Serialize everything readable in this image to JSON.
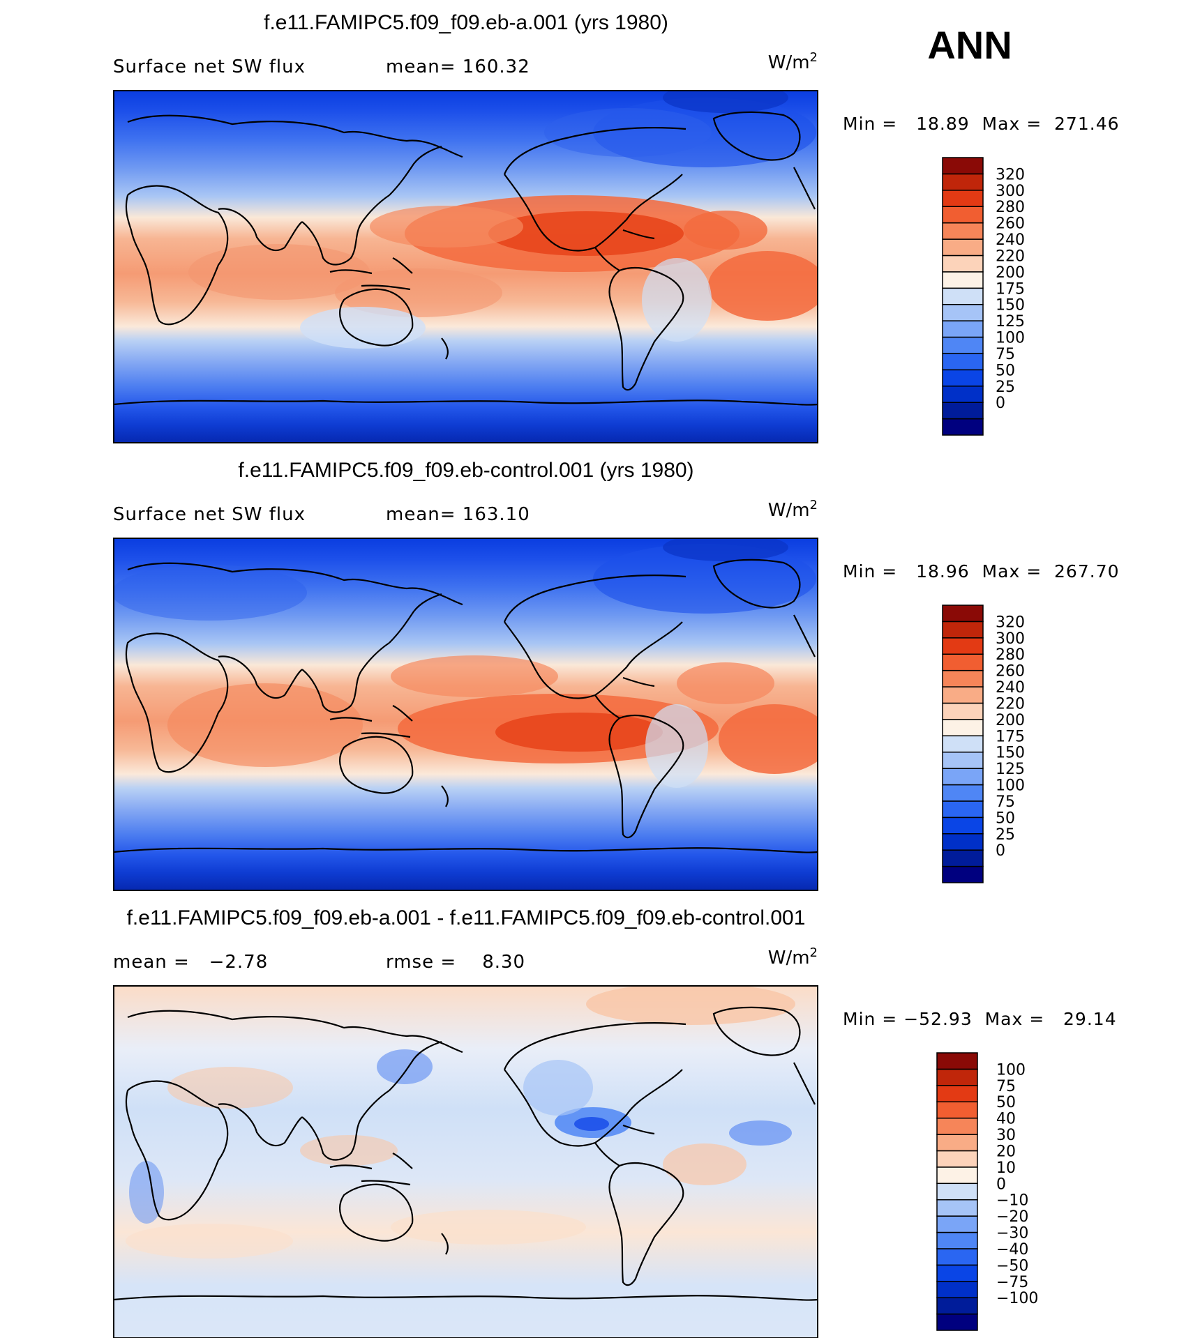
{
  "season_label": "ANN",
  "colorbar_palettes": {
    "field": [
      "#00007f",
      "#001c9a",
      "#0030c8",
      "#0a45e6",
      "#2a66f2",
      "#4f86f5",
      "#7aa5f7",
      "#a6c4f7",
      "#cfe0f7",
      "#fdf2e6",
      "#fcd3ba",
      "#f9ac86",
      "#f68559",
      "#f15e31",
      "#e33a14",
      "#c0260a",
      "#8a0a06"
    ],
    "diff": [
      "#00007f",
      "#001c9a",
      "#0030c8",
      "#0a45e6",
      "#2a66f2",
      "#4f86f5",
      "#7aa5f7",
      "#a6c4f7",
      "#cfe0f7",
      "#fdf2e6",
      "#fcd3ba",
      "#f9ac86",
      "#f68559",
      "#f15e31",
      "#e33a14",
      "#c0260a",
      "#8a0a06"
    ]
  },
  "panels": [
    {
      "title": "f.e11.FAMIPC5.f09_f09.eb-a.001 (yrs 1980)",
      "left_label": "Surface net SW flux",
      "stat_label": "mean= 160.32",
      "units_base": "W/m",
      "units_exp": "2",
      "minmax": "Min =   18.89  Max =  271.46",
      "colorbar_ticks": [
        "320",
        "300",
        "280",
        "260",
        "240",
        "220",
        "200",
        "175",
        "150",
        "125",
        "100",
        "75",
        "50",
        "25",
        "0"
      ],
      "palette": "field"
    },
    {
      "title": "f.e11.FAMIPC5.f09_f09.eb-control.001 (yrs 1980)",
      "left_label": "Surface net SW flux",
      "stat_label": "mean= 163.10",
      "units_base": "W/m",
      "units_exp": "2",
      "minmax": "Min =   18.96  Max =  267.70",
      "colorbar_ticks": [
        "320",
        "300",
        "280",
        "260",
        "240",
        "220",
        "200",
        "175",
        "150",
        "125",
        "100",
        "75",
        "50",
        "25",
        "0"
      ],
      "palette": "field"
    },
    {
      "title": "f.e11.FAMIPC5.f09_f09.eb-a.001 - f.e11.FAMIPC5.f09_f09.eb-control.001",
      "left_label": "mean =   −2.78",
      "stat_label": "rmse =    8.30",
      "units_base": "W/m",
      "units_exp": "2",
      "minmax": "Min = −52.93  Max =   29.14",
      "colorbar_ticks": [
        "100",
        "75",
        "50",
        "40",
        "30",
        "20",
        "10",
        "0",
        "−10",
        "−20",
        "−30",
        "−40",
        "−50",
        "−75",
        "−100"
      ],
      "palette": "diff"
    }
  ],
  "chart_data": [
    {
      "type": "heatmap",
      "title": "f.e11.FAMIPC5.f09_f09.eb-a.001 (yrs 1980)",
      "variable": "Surface net SW flux",
      "units": "W/m2",
      "mean": 160.32,
      "min": 18.89,
      "max": 271.46,
      "contour_levels": [
        0,
        25,
        50,
        75,
        100,
        125,
        150,
        175,
        200,
        220,
        240,
        260,
        280,
        300,
        320
      ],
      "season": "ANN"
    },
    {
      "type": "heatmap",
      "title": "f.e11.FAMIPC5.f09_f09.eb-control.001 (yrs 1980)",
      "variable": "Surface net SW flux",
      "units": "W/m2",
      "mean": 163.1,
      "min": 18.96,
      "max": 267.7,
      "contour_levels": [
        0,
        25,
        50,
        75,
        100,
        125,
        150,
        175,
        200,
        220,
        240,
        260,
        280,
        300,
        320
      ],
      "season": "ANN"
    },
    {
      "type": "heatmap",
      "title": "f.e11.FAMIPC5.f09_f09.eb-a.001 - f.e11.FAMIPC5.f09_f09.eb-control.001",
      "units": "W/m2",
      "mean": -2.78,
      "rmse": 8.3,
      "min": -52.93,
      "max": 29.14,
      "contour_levels": [
        -100,
        -75,
        -50,
        -40,
        -30,
        -20,
        -10,
        0,
        10,
        20,
        30,
        40,
        50,
        75,
        100
      ],
      "season": "ANN"
    }
  ]
}
